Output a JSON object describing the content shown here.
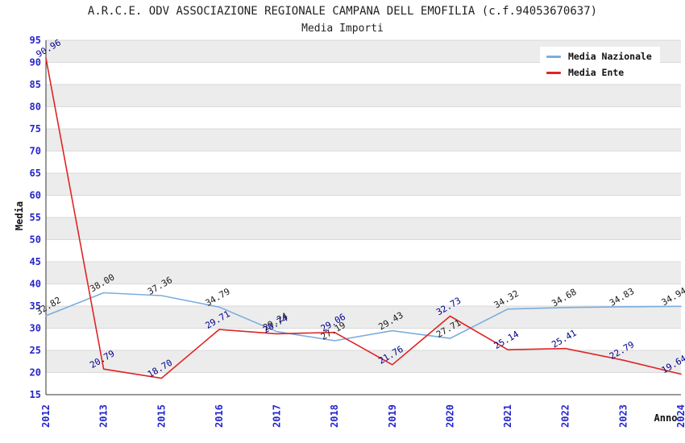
{
  "page": {
    "background": "#ffffff"
  },
  "chart_data": {
    "type": "line",
    "title": "A.R.C.E. ODV ASSOCIAZIONE REGIONALE CAMPANA DELL EMOFILIA (c.f.94053670637)",
    "subtitle": "Media Importi",
    "xlabel": "Anno",
    "ylabel": "Media",
    "ylim": [
      15,
      95
    ],
    "ytick_step": 5,
    "yticks": [
      15,
      20,
      25,
      30,
      35,
      40,
      45,
      50,
      55,
      60,
      65,
      70,
      75,
      80,
      85,
      90,
      95
    ],
    "categories": [
      "2012",
      "2013",
      "2015",
      "2016",
      "2017",
      "2018",
      "2019",
      "2020",
      "2021",
      "2022",
      "2023",
      "2024"
    ],
    "series": [
      {
        "name": "Media Nazionale",
        "color": "#7badde",
        "label_color": "#1a1a1a",
        "values": [
          32.82,
          38.0,
          37.36,
          34.79,
          29.24,
          27.19,
          29.43,
          27.71,
          34.32,
          34.68,
          34.83,
          34.94
        ]
      },
      {
        "name": "Media Ente",
        "color": "#e02424",
        "label_color": "#00008b",
        "values": [
          90.96,
          20.79,
          18.7,
          29.71,
          28.74,
          29.06,
          21.76,
          32.73,
          25.14,
          25.41,
          22.79,
          19.64
        ]
      }
    ],
    "legend_position": "top-right",
    "grid": "horizontal-bands",
    "colors": {
      "band": "#ececec",
      "gridline": "#d9d9d9",
      "tick_label": "#2525cc",
      "axis_label": "#111111",
      "spine": "#333333",
      "legend_bg": "#ffffff",
      "title": "#222222"
    }
  }
}
